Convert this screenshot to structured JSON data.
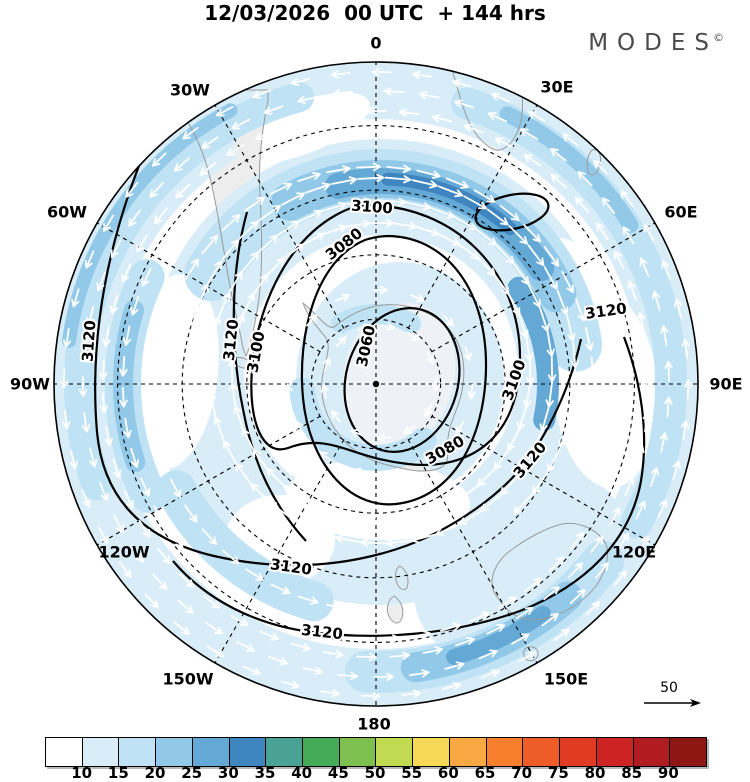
{
  "header": {
    "title": "12/03/2026  00 UTC  + 144 hrs"
  },
  "brand": {
    "name": "MODES",
    "mark": "©"
  },
  "map": {
    "longitude_labels": [
      "0",
      "30E",
      "60E",
      "90E",
      "120E",
      "150E",
      "180",
      "150W",
      "120W",
      "90W",
      "60W",
      "30W"
    ],
    "contour_labels": [
      "3060",
      "3080",
      "3080",
      "3100",
      "3100",
      "3100",
      "3120",
      "3120",
      "3120",
      "3120",
      "3120",
      "3120"
    ]
  },
  "reference_arrow": {
    "label": "50"
  },
  "chart_data": {
    "type": "heatmap",
    "title": "12/03/2026  00 UTC  + 144 hrs",
    "projection": "south polar stereographic",
    "contour_levels_labeled": [
      3060,
      3080,
      3100,
      3120
    ],
    "longitude_ring_labels": [
      "0",
      "30E",
      "60E",
      "90E",
      "120E",
      "150E",
      "180",
      "150W",
      "120W",
      "90W",
      "60W",
      "30W"
    ],
    "wind_reference_arrow": 50,
    "colorbar": {
      "ticks": [
        10,
        15,
        20,
        25,
        30,
        35,
        40,
        45,
        50,
        55,
        60,
        65,
        70,
        75,
        80,
        85,
        90
      ],
      "cell_colors": [
        "#ffffff",
        "#d9edf8",
        "#bfe2f5",
        "#92c9e9",
        "#64a9d6",
        "#3f86c0",
        "#4aa295",
        "#45ab56",
        "#7ec04f",
        "#c2da52",
        "#f8d957",
        "#f8a943",
        "#f67e2d",
        "#ee5c28",
        "#e13b23",
        "#cb2422",
        "#b01c20",
        "#8f1713"
      ]
    }
  }
}
